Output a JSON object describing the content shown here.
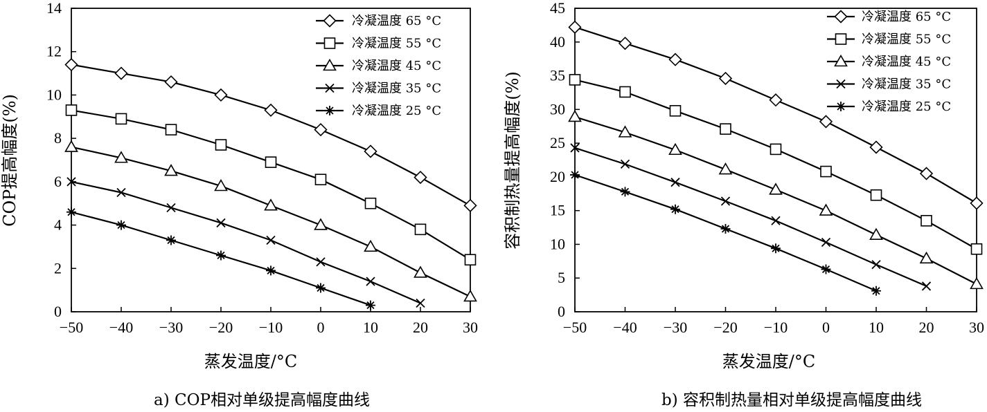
{
  "chart_data": [
    {
      "type": "line",
      "caption": "a) COP相对单级提高幅度曲线",
      "xlabel": "蒸发温度/°C",
      "ylabel": "COP提高幅度(%)",
      "xlim": [
        -50,
        30
      ],
      "ylim": [
        0,
        14
      ],
      "xticks": [
        "−50",
        "−40",
        "−30",
        "−20",
        "−10",
        "0",
        "10",
        "20",
        "30"
      ],
      "yticks": [
        "0",
        "2",
        "4",
        "6",
        "8",
        "10",
        "12",
        "14"
      ],
      "grid": false,
      "legend_position": "top-right",
      "series": [
        {
          "name": "冷凝温度 65 °C",
          "marker": "diamond",
          "x": [
            -50,
            -40,
            -30,
            -20,
            -10,
            0,
            10,
            20,
            30
          ],
          "y": [
            11.4,
            11.0,
            10.6,
            10.0,
            9.3,
            8.4,
            7.4,
            6.2,
            4.9
          ]
        },
        {
          "name": "冷凝温度 55 °C",
          "marker": "square",
          "x": [
            -50,
            -40,
            -30,
            -20,
            -10,
            0,
            10,
            20,
            30
          ],
          "y": [
            9.3,
            8.9,
            8.4,
            7.7,
            6.9,
            6.1,
            5.0,
            3.8,
            2.4
          ]
        },
        {
          "name": "冷凝温度 45 °C",
          "marker": "triangle",
          "x": [
            -50,
            -40,
            -30,
            -20,
            -10,
            0,
            10,
            20,
            30
          ],
          "y": [
            7.6,
            7.1,
            6.5,
            5.8,
            4.9,
            4.0,
            3.0,
            1.8,
            0.7
          ]
        },
        {
          "name": "冷凝温度 35 °C",
          "marker": "x",
          "x": [
            -50,
            -40,
            -30,
            -20,
            -10,
            0,
            10,
            20
          ],
          "y": [
            6.0,
            5.5,
            4.8,
            4.1,
            3.3,
            2.3,
            1.4,
            0.4
          ]
        },
        {
          "name": "冷凝温度 25 °C",
          "marker": "asterisk",
          "x": [
            -50,
            -40,
            -30,
            -20,
            -10,
            0,
            10
          ],
          "y": [
            4.6,
            4.0,
            3.3,
            2.6,
            1.9,
            1.1,
            0.3
          ]
        }
      ]
    },
    {
      "type": "line",
      "caption": "b) 容积制热量相对单级提高幅度曲线",
      "xlabel": "蒸发温度/°C",
      "ylabel": "容积制热量提高幅度(%)",
      "xlim": [
        -50,
        30
      ],
      "ylim": [
        0,
        45
      ],
      "xticks": [
        "−50",
        "−40",
        "−30",
        "−20",
        "−10",
        "0",
        "10",
        "20",
        "30"
      ],
      "yticks": [
        "0",
        "5",
        "10",
        "15",
        "20",
        "25",
        "30",
        "35",
        "40",
        "45"
      ],
      "grid": false,
      "legend_position": "top-right",
      "series": [
        {
          "name": "冷凝温度 65 °C",
          "marker": "diamond",
          "x": [
            -50,
            -40,
            -30,
            -20,
            -10,
            0,
            10,
            20,
            30
          ],
          "y": [
            42.2,
            39.8,
            37.4,
            34.6,
            31.4,
            28.2,
            24.4,
            20.5,
            16.1
          ]
        },
        {
          "name": "冷凝温度 55 °C",
          "marker": "square",
          "x": [
            -50,
            -40,
            -30,
            -20,
            -10,
            0,
            10,
            20,
            30
          ],
          "y": [
            34.4,
            32.6,
            29.8,
            27.1,
            24.1,
            20.8,
            17.3,
            13.5,
            9.3
          ]
        },
        {
          "name": "冷凝温度 45 °C",
          "marker": "triangle",
          "x": [
            -50,
            -40,
            -30,
            -20,
            -10,
            0,
            10,
            20,
            30
          ],
          "y": [
            28.9,
            26.6,
            24.0,
            21.1,
            18.1,
            15.0,
            11.4,
            7.9,
            4.1
          ]
        },
        {
          "name": "冷凝温度 35 °C",
          "marker": "x",
          "x": [
            -50,
            -40,
            -30,
            -20,
            -10,
            0,
            10,
            20
          ],
          "y": [
            24.3,
            21.9,
            19.2,
            16.4,
            13.5,
            10.3,
            7.0,
            3.8
          ]
        },
        {
          "name": "冷凝温度 25 °C",
          "marker": "asterisk",
          "x": [
            -50,
            -40,
            -30,
            -20,
            -10,
            0,
            10
          ],
          "y": [
            20.3,
            17.8,
            15.2,
            12.3,
            9.4,
            6.3,
            3.1
          ]
        }
      ]
    }
  ]
}
